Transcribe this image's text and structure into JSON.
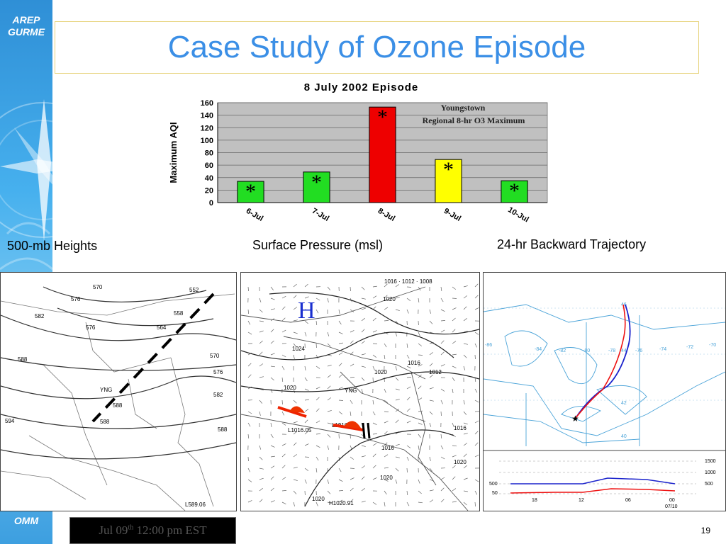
{
  "sidebar": {
    "brand_top_line1": "AREP",
    "brand_top_line2": "GURME",
    "brand_bottom": "OMM"
  },
  "slide": {
    "title": "Case Study of Ozone Episode",
    "page_number": "19"
  },
  "captions": {
    "heights": "500-mb Heights",
    "pressure": "Surface Pressure (msl)",
    "trajectory": "24-hr Backward Trajectory"
  },
  "footer": {
    "text_before": "Jul 09",
    "superscript": "th",
    "text_after": " 12:00 pm EST"
  },
  "chart_data": {
    "type": "bar",
    "title": "8 July 2002 Episode",
    "ylabel": "Maximum AQI",
    "xlabel": "",
    "annotation_line1": "Youngstown",
    "annotation_line2": "Regional 8-hr O3 Maximum",
    "categories": [
      "6-Jul",
      "7-Jul",
      "8-Jul",
      "9-Jul",
      "10-Jul"
    ],
    "values": [
      34,
      49,
      153,
      69,
      35
    ],
    "bar_colors": [
      "#22dd22",
      "#22dd22",
      "#ee0000",
      "#ffff00",
      "#22dd22"
    ],
    "marker": "*",
    "ylim": [
      0,
      160
    ],
    "yticks": [
      0,
      20,
      40,
      60,
      80,
      100,
      120,
      140,
      160
    ],
    "grid": true,
    "plot_background": "#c0c0c0"
  },
  "heights_map": {
    "contour_labels": [
      "552",
      "570",
      "576",
      "558",
      "582",
      "564",
      "576",
      "588",
      "570",
      "576",
      "582",
      "588",
      "594",
      "588",
      "588"
    ],
    "station": "YNG",
    "low_label": "L589.06"
  },
  "pressure_map": {
    "high_symbol": "H",
    "top_labels": "1016 · 1012 · 1008",
    "isobar_labels": [
      "1020",
      "1024",
      "1020",
      "1020",
      "1016",
      "1012",
      "1016",
      "1016",
      "1020",
      "1020",
      "1020"
    ],
    "station": "YNG",
    "low1": "L1016.05",
    "low2": "L1016.17",
    "high_low": "H1020.91"
  },
  "trajectory_map": {
    "lat_labels": [
      "46",
      "44",
      "42",
      "40"
    ],
    "lon_labels": [
      "-86",
      "-84",
      "-82",
      "-80",
      "-78",
      "-76",
      "-74",
      "-72",
      "-70"
    ],
    "profile_labels_left": [
      "500",
      "50"
    ],
    "profile_labels_right": [
      "1500",
      "1000",
      "500"
    ],
    "time_labels": [
      "18",
      "12",
      "06",
      "00"
    ],
    "date_label": "07/10"
  }
}
